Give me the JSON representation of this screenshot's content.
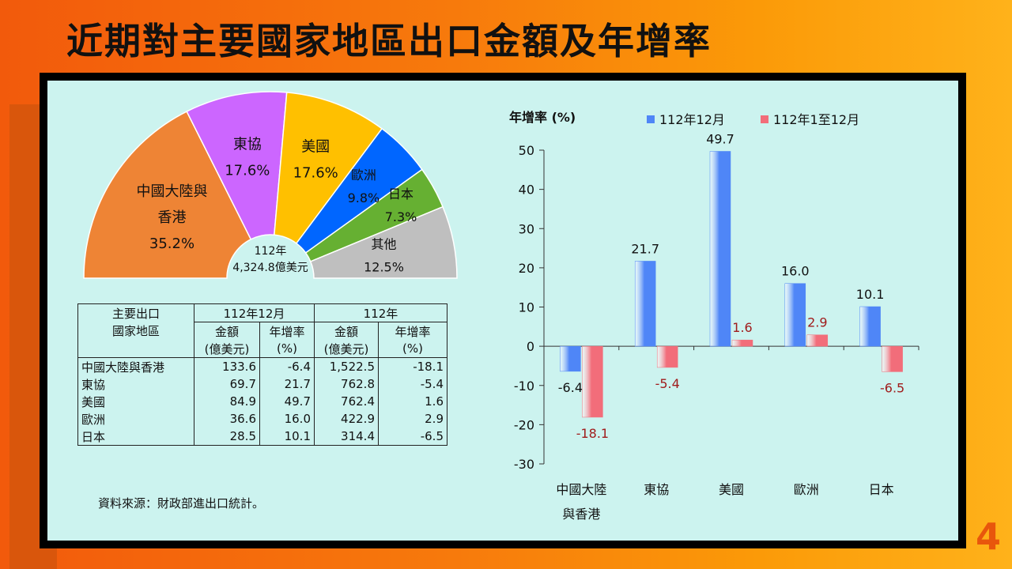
{
  "title": "近期對主要國家地區出口金額及年增率",
  "page_number": "4",
  "source": "資料來源：財政部進出口統計。",
  "pie": {
    "center_line1": "112年",
    "center_line2": "4,324.8億美元",
    "slices": [
      {
        "name_lines": [
          "中國大陸與",
          "香港"
        ],
        "pct": "35.2%",
        "value": 35.2,
        "color": "#ee8435"
      },
      {
        "name_lines": [
          "東協"
        ],
        "pct": "17.6%",
        "value": 17.6,
        "color": "#cc66ff"
      },
      {
        "name_lines": [
          "美國"
        ],
        "pct": "17.6%",
        "value": 17.6,
        "color": "#ffc000"
      },
      {
        "name_lines": [
          "歐洲"
        ],
        "pct": "9.8%",
        "value": 9.8,
        "color": "#0066ff"
      },
      {
        "name_lines": [
          "日本"
        ],
        "pct": "7.3%",
        "value": 7.3,
        "color": "#66b032"
      },
      {
        "name_lines": [
          "其他"
        ],
        "pct": "12.5%",
        "value": 12.5,
        "color": "#bfbfbf"
      }
    ]
  },
  "table": {
    "header_col1_line1": "主要出口",
    "header_col1_line2": "國家地區",
    "period1": "112年12月",
    "period2": "112年",
    "sub_amount_line1": "金額",
    "sub_amount_line2": "(億美元)",
    "sub_growth_line1": "年增率",
    "sub_growth_line2": "(%)",
    "rows": [
      {
        "name": "中國大陸與香港",
        "v1": "133.6",
        "g1": "-6.4",
        "v2": "1,522.5",
        "g2": "-18.1"
      },
      {
        "name": "東協",
        "v1": "69.7",
        "g1": "21.7",
        "v2": "762.8",
        "g2": "-5.4"
      },
      {
        "name": "美國",
        "v1": "84.9",
        "g1": "49.7",
        "v2": "762.4",
        "g2": "1.6"
      },
      {
        "name": "歐洲",
        "v1": "36.6",
        "g1": "16.0",
        "v2": "422.9",
        "g2": "2.9"
      },
      {
        "name": "日本",
        "v1": "28.5",
        "g1": "10.1",
        "v2": "314.4",
        "g2": "-6.5"
      }
    ]
  },
  "chart_data": {
    "type": "bar",
    "ylabel": "年增率 (%)",
    "ylim": [
      -30,
      50
    ],
    "yticks": [
      50,
      40,
      30,
      20,
      10,
      0,
      -10,
      -20,
      -30
    ],
    "categories": [
      [
        "中國大陸",
        "與香港"
      ],
      [
        "東協"
      ],
      [
        "美國"
      ],
      [
        "歐洲"
      ],
      [
        "日本"
      ]
    ],
    "series": [
      {
        "name": "112年12月",
        "values": [
          -6.4,
          21.7,
          49.7,
          16.0,
          10.1
        ],
        "labels": [
          "-6.4",
          "21.7",
          "49.7",
          "16.0",
          "10.1"
        ],
        "color": "#4f86f7",
        "label_color": "#111111"
      },
      {
        "name": "112年1至12月",
        "values": [
          -18.1,
          -5.4,
          1.6,
          2.9,
          -6.5
        ],
        "labels": [
          "-18.1",
          "-5.4",
          "1.6",
          "2.9",
          "-6.5"
        ],
        "color": "#f26d7a",
        "label_color": "#a01c1c"
      }
    ],
    "legend_position": "top"
  }
}
